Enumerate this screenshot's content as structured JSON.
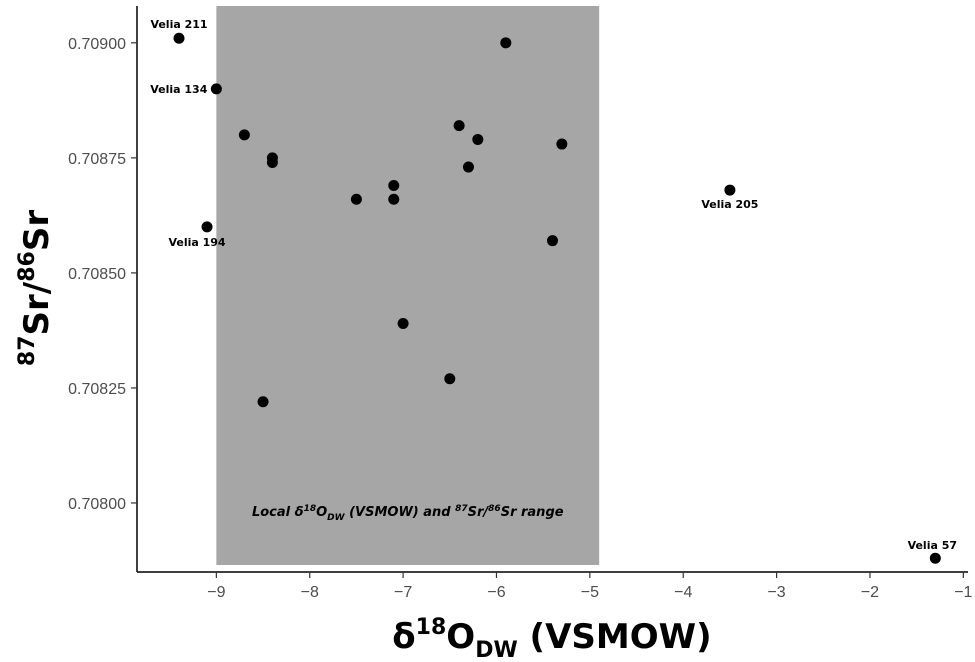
{
  "chart_data": {
    "type": "scatter",
    "xlabel": {
      "base": "δ",
      "sup": "18",
      "main": "O",
      "sub": "DW",
      "suffix": " (VSMOW)"
    },
    "ylabel": {
      "sup1": "87",
      "mid": "Sr/",
      "sup2": "86",
      "main": "Sr"
    },
    "xlim": [
      -9.85,
      -0.95
    ],
    "ylim": [
      0.70785,
      0.70908
    ],
    "xticks": [
      -9,
      -8,
      -7,
      -6,
      -5,
      -4,
      -3,
      -2,
      -1
    ],
    "xtick_labels": [
      "−9",
      "−8",
      "−7",
      "−6",
      "−5",
      "−4",
      "−3",
      "−2",
      "−1"
    ],
    "yticks": [
      0.708,
      0.70825,
      0.7085,
      0.70875,
      0.709
    ],
    "ytick_labels": [
      "0.70800",
      "0.70825",
      "0.70850",
      "0.70875",
      "0.70900"
    ],
    "grid": false,
    "local_range": {
      "x": [
        -9.0,
        -4.9
      ],
      "label": {
        "p1": "Local δ",
        "sup1": "18",
        "p2": "O",
        "sub1": "DW",
        "p3": " (VSMOW) and ",
        "sup2": "87",
        "p4": "Sr/",
        "sup3": "86",
        "p5": "Sr range"
      },
      "color": "#a6a6a6"
    },
    "points": [
      {
        "x": -9.4,
        "y": 0.70901,
        "label": "Velia 211"
      },
      {
        "x": -9.0,
        "y": 0.7089,
        "label": "Velia 134"
      },
      {
        "x": -9.1,
        "y": 0.7086,
        "label": "Velia 194"
      },
      {
        "x": -3.5,
        "y": 0.70868,
        "label": "Velia 205"
      },
      {
        "x": -1.3,
        "y": 0.70788,
        "label": "Velia 57"
      },
      {
        "x": -8.7,
        "y": 0.7088,
        "label": ""
      },
      {
        "x": -8.4,
        "y": 0.70875,
        "label": ""
      },
      {
        "x": -8.4,
        "y": 0.70874,
        "label": ""
      },
      {
        "x": -8.5,
        "y": 0.70822,
        "label": ""
      },
      {
        "x": -7.5,
        "y": 0.70866,
        "label": ""
      },
      {
        "x": -7.1,
        "y": 0.70869,
        "label": ""
      },
      {
        "x": -7.1,
        "y": 0.70866,
        "label": ""
      },
      {
        "x": -7.0,
        "y": 0.70839,
        "label": ""
      },
      {
        "x": -6.5,
        "y": 0.70827,
        "label": ""
      },
      {
        "x": -6.4,
        "y": 0.70882,
        "label": ""
      },
      {
        "x": -6.3,
        "y": 0.70873,
        "label": ""
      },
      {
        "x": -6.2,
        "y": 0.70879,
        "label": ""
      },
      {
        "x": -5.9,
        "y": 0.709,
        "label": ""
      },
      {
        "x": -5.4,
        "y": 0.70857,
        "label": ""
      },
      {
        "x": -5.3,
        "y": 0.70878,
        "label": ""
      }
    ],
    "point_color": "#000000"
  }
}
